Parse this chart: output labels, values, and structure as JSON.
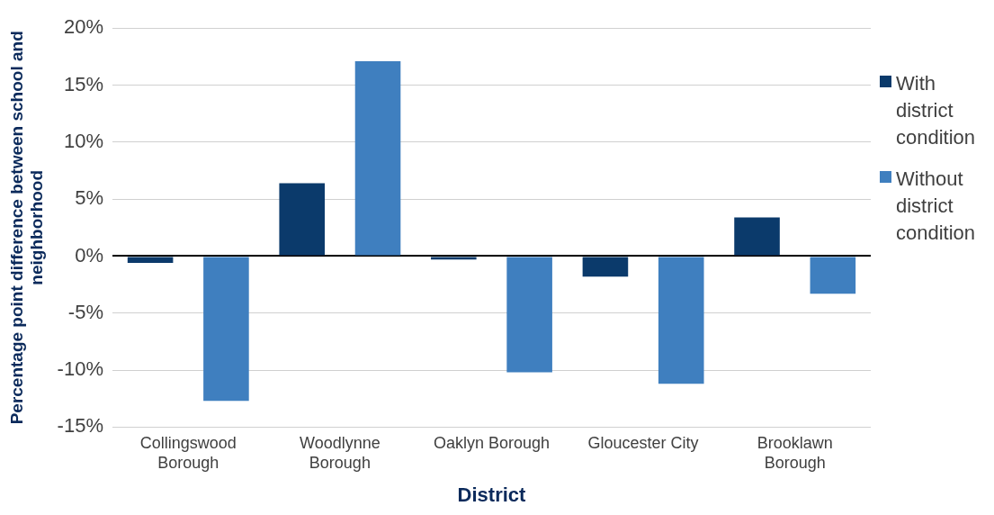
{
  "chart_data": {
    "type": "bar",
    "xlabel": "District",
    "ylabel": "Percentage point difference between school and neighborhood",
    "categories": [
      "Collingswood Borough",
      "Woodlynne Borough",
      "Oaklyn Borough",
      "Gloucester City",
      "Brooklawn Borough"
    ],
    "series": [
      {
        "name": "With district condition",
        "color": "#0b3a6b",
        "values": [
          -0.6,
          6.4,
          -0.3,
          -1.8,
          3.4
        ]
      },
      {
        "name": "Without district condition",
        "color": "#3f7fbf",
        "values": [
          -12.7,
          17.1,
          -10.2,
          -11.2,
          -3.3
        ]
      }
    ],
    "ylim": [
      -15,
      20
    ],
    "yticks": [
      {
        "value": -15,
        "label": "-15%"
      },
      {
        "value": -10,
        "label": "-10%"
      },
      {
        "value": -5,
        "label": "-5%"
      },
      {
        "value": 0,
        "label": "0%"
      },
      {
        "value": 5,
        "label": "5%"
      },
      {
        "value": 10,
        "label": "10%"
      },
      {
        "value": 15,
        "label": "15%"
      },
      {
        "value": 20,
        "label": "20%"
      }
    ],
    "grid": "y",
    "legend": "right"
  }
}
